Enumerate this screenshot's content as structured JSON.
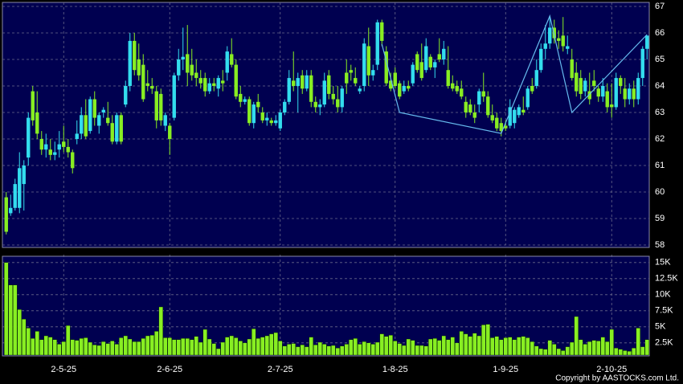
{
  "chart_data": [
    {
      "type": "candlestick",
      "up_color": "#33ddee",
      "down_color": "#88ee22",
      "categories": [
        null,
        null,
        null,
        null,
        null,
        null,
        null,
        null,
        null,
        null,
        null,
        null,
        null,
        "2-5-25",
        null,
        null,
        null,
        null,
        null,
        null,
        null,
        null,
        null,
        null,
        null,
        null,
        null,
        null,
        null,
        null,
        null,
        null,
        null,
        null,
        null,
        null,
        null,
        "2-6-25",
        null,
        null,
        null,
        null,
        null,
        null,
        null,
        null,
        null,
        null,
        null,
        null,
        null,
        null,
        null,
        null,
        null,
        null,
        null,
        null,
        null,
        null,
        null,
        null,
        "2-7-25",
        null,
        null,
        null,
        null,
        null,
        null,
        null,
        null,
        null,
        null,
        null,
        null,
        null,
        null,
        null,
        null,
        null,
        null,
        null,
        null,
        null,
        null,
        null,
        null,
        null,
        "1-8-25",
        null,
        null,
        null,
        null,
        null,
        null,
        null,
        null,
        null,
        null,
        null,
        null,
        null,
        null,
        null,
        null,
        null,
        null,
        null,
        null,
        null,
        null,
        null,
        null,
        "1-9-25",
        null,
        null,
        null,
        null,
        null,
        null,
        null,
        null,
        null,
        null,
        null,
        null,
        null,
        null,
        null,
        null,
        null,
        null,
        null,
        null,
        null,
        null,
        null,
        "2-10-25",
        null,
        null,
        null,
        null,
        null,
        null,
        null,
        null
      ],
      "open": [
        59.8,
        59.2,
        59.4,
        59.4,
        60.3,
        61.3,
        63.8,
        63.0,
        62.0,
        61.6,
        61.6,
        61.4,
        61.6,
        61.9,
        61.7,
        61.5,
        62.0,
        62.2,
        62.9,
        62.3,
        63.5,
        62.5,
        63.0,
        62.8,
        62.6,
        61.9,
        62.9,
        63.3,
        64.0,
        65.7,
        65.0,
        64.8,
        64.1,
        64.0,
        63.8,
        63.7,
        62.5,
        62.5,
        62.8,
        64.4,
        65.0,
        65.2,
        64.8,
        64.5,
        64.3,
        64.3,
        63.8,
        64.1,
        63.9,
        64.2,
        64.5,
        65.2,
        64.8,
        63.7,
        63.4,
        63.5,
        62.6,
        63.4,
        63.0,
        62.7,
        62.7,
        62.6,
        62.4,
        63.0,
        63.4,
        64.2,
        64.0,
        64.4,
        63.9,
        64.4,
        63.4,
        63.2,
        63.3,
        64.4,
        63.7,
        63.5,
        63.2,
        64.5,
        64.6,
        64.3,
        63.8,
        64.0,
        65.5,
        64.4,
        64.8,
        66.4,
        65.3,
        64.2,
        64.5,
        64.1,
        63.8,
        64.0,
        64.1,
        65.2,
        64.9,
        64.6,
        65.1,
        64.7,
        65.2,
        65.0,
        64.6,
        64.1,
        64.0,
        63.9,
        63.4,
        63.3,
        63.0,
        63.3,
        63.8,
        63.6,
        62.9,
        62.8,
        62.6,
        62.5,
        62.5,
        62.6,
        62.9,
        63.1,
        63.2,
        64.0,
        64.0,
        64.6,
        65.4,
        65.6,
        66.2,
        65.8,
        65.9,
        65.4,
        65.0,
        64.5,
        64.3,
        63.8,
        63.8,
        64.2,
        63.9,
        63.6,
        63.8,
        63.3,
        63.2,
        64.3,
        63.9,
        63.5,
        63.9,
        63.5,
        64.3,
        65.4
      ],
      "high": [
        60.0,
        59.9,
        60.5,
        61.5,
        61.2,
        63.0,
        64.0,
        63.8,
        62.3,
        62.2,
        62.0,
        61.9,
        62.3,
        62.5,
        62.0,
        61.6,
        62.7,
        63.2,
        63.5,
        63.6,
        63.8,
        63.0,
        63.2,
        63.4,
        62.9,
        63.0,
        63.0,
        64.2,
        66.0,
        66.0,
        65.6,
        65.2,
        64.6,
        64.3,
        64.0,
        63.9,
        63.0,
        62.6,
        64.5,
        65.4,
        66.2,
        66.3,
        65.4,
        65.0,
        64.6,
        64.5,
        64.3,
        64.3,
        64.4,
        64.6,
        65.5,
        65.8,
        65.0,
        64.0,
        63.6,
        63.6,
        63.4,
        63.7,
        63.2,
        63.0,
        62.8,
        62.9,
        63.1,
        63.5,
        64.6,
        65.3,
        64.5,
        64.6,
        64.6,
        64.6,
        63.6,
        63.5,
        64.5,
        64.6,
        64.0,
        64.0,
        64.0,
        65.0,
        64.8,
        64.7,
        64.0,
        65.8,
        66.2,
        64.8,
        66.5,
        66.5,
        65.5,
        64.5,
        64.7,
        64.2,
        64.2,
        64.2,
        64.9,
        65.3,
        65.6,
        65.8,
        65.2,
        65.0,
        65.8,
        65.7,
        65.5,
        64.4,
        64.2,
        64.2,
        63.6,
        63.5,
        63.3,
        63.9,
        64.5,
        63.8,
        63.3,
        63.0,
        62.8,
        62.7,
        63.5,
        63.2,
        63.3,
        63.6,
        64.0,
        64.3,
        65.0,
        65.6,
        66.3,
        66.6,
        66.5,
        66.1,
        66.6,
        65.9,
        65.4,
        64.9,
        64.6,
        64.3,
        64.5,
        64.6,
        64.0,
        64.3,
        64.1,
        64.1,
        64.5,
        64.4,
        64.3,
        64.1,
        64.2,
        64.5,
        65.5,
        65.9
      ],
      "low": [
        58.4,
        59.1,
        59.3,
        59.2,
        59.3,
        61.0,
        62.5,
        62.0,
        61.4,
        61.3,
        61.2,
        61.2,
        61.3,
        61.5,
        61.3,
        60.7,
        61.8,
        62.0,
        62.0,
        62.2,
        62.5,
        62.2,
        62.8,
        62.5,
        61.8,
        61.8,
        61.8,
        63.2,
        63.8,
        64.4,
        64.2,
        63.4,
        63.8,
        63.7,
        62.4,
        62.5,
        62.3,
        61.4,
        62.7,
        64.2,
        64.6,
        64.0,
        64.2,
        64.0,
        63.9,
        63.6,
        63.7,
        63.8,
        63.6,
        63.8,
        64.2,
        64.7,
        63.5,
        63.2,
        63.3,
        62.5,
        62.4,
        63.0,
        62.6,
        62.5,
        62.5,
        62.5,
        62.3,
        62.9,
        63.3,
        63.8,
        63.0,
        63.7,
        63.8,
        63.2,
        63.0,
        62.9,
        63.2,
        63.5,
        63.3,
        63.0,
        63.0,
        63.7,
        64.2,
        64.0,
        63.7,
        63.8,
        64.0,
        64.2,
        64.6,
        65.5,
        64.0,
        63.8,
        63.9,
        63.5,
        63.7,
        63.8,
        64.0,
        64.5,
        64.2,
        64.5,
        64.6,
        64.3,
        64.9,
        64.8,
        63.9,
        63.8,
        63.7,
        63.5,
        62.8,
        62.9,
        62.6,
        63.0,
        63.4,
        62.8,
        62.6,
        62.3,
        62.1,
        62.3,
        62.4,
        62.4,
        62.8,
        62.9,
        63.1,
        63.7,
        63.9,
        64.5,
        65.0,
        65.4,
        65.6,
        65.4,
        65.3,
        65.2,
        64.2,
        63.6,
        63.5,
        63.6,
        63.3,
        63.8,
        63.4,
        63.4,
        63.0,
        62.8,
        63.1,
        63.7,
        63.2,
        63.3,
        63.2,
        63.3,
        64.0,
        65.0
      ],
      "close": [
        58.5,
        59.4,
        60.3,
        60.9,
        61.0,
        62.8,
        62.7,
        62.2,
        61.6,
        61.8,
        61.4,
        61.5,
        61.8,
        61.7,
        61.5,
        60.9,
        62.2,
        62.9,
        62.1,
        63.5,
        62.8,
        62.9,
        63.1,
        62.6,
        61.9,
        62.9,
        61.9,
        64.0,
        65.7,
        64.6,
        64.4,
        63.5,
        64.0,
        63.9,
        62.7,
        62.7,
        62.9,
        62.0,
        64.4,
        65.0,
        65.1,
        64.5,
        64.4,
        64.3,
        64.1,
        63.8,
        64.1,
        64.0,
        64.3,
        64.1,
        65.3,
        64.8,
        63.6,
        63.4,
        63.5,
        62.6,
        63.3,
        63.2,
        62.7,
        62.8,
        62.6,
        62.7,
        63.0,
        63.4,
        64.3,
        64.0,
        64.3,
        63.9,
        64.4,
        63.4,
        63.2,
        63.3,
        64.2,
        63.7,
        63.5,
        63.2,
        63.9,
        64.1,
        64.5,
        64.1,
        63.9,
        65.6,
        64.4,
        64.6,
        66.4,
        65.7,
        64.1,
        63.9,
        64.0,
        63.6,
        64.0,
        63.9,
        64.8,
        64.6,
        64.3,
        65.5,
        64.7,
        64.9,
        65.0,
        65.4,
        64.0,
        63.9,
        63.8,
        63.6,
        63.0,
        63.0,
        62.8,
        63.8,
        63.6,
        62.9,
        62.7,
        62.4,
        62.3,
        62.4,
        63.2,
        63.1,
        63.2,
        63.0,
        63.9,
        63.8,
        64.6,
        65.4,
        65.6,
        66.2,
        65.8,
        65.7,
        65.5,
        65.5,
        64.3,
        63.8,
        63.7,
        64.2,
        63.5,
        64.0,
        63.6,
        64.0,
        63.2,
        63.2,
        64.3,
        64.0,
        63.5,
        63.9,
        63.5,
        64.3,
        65.4,
        65.9
      ],
      "zigzag": {
        "color": "#66bbee",
        "x": [
          85,
          89,
          112,
          123,
          128,
          145
        ],
        "values": [
          65.58,
          63.0,
          62.21,
          66.64,
          63.0,
          65.94
        ]
      },
      "ylim": [
        58,
        67
      ],
      "yticks": [
        58,
        59,
        60,
        61,
        62,
        63,
        64,
        65,
        66,
        67
      ],
      "grid": true
    },
    {
      "type": "bar",
      "color": "#88ee22",
      "values": [
        15000,
        11500,
        11500,
        7700,
        6200,
        4800,
        3200,
        4300,
        3000,
        3600,
        3400,
        3000,
        2300,
        2700,
        5200,
        3000,
        2900,
        3200,
        3300,
        2600,
        2200,
        2100,
        2700,
        2400,
        2800,
        2300,
        3300,
        3600,
        3100,
        2700,
        2700,
        3200,
        3600,
        3700,
        4300,
        8100,
        3300,
        3300,
        3000,
        3000,
        3200,
        3200,
        3000,
        3500,
        2600,
        4600,
        3100,
        2400,
        1600,
        2600,
        3400,
        3600,
        3300,
        2800,
        2500,
        3100,
        4700,
        3200,
        3400,
        3600,
        3900,
        4100,
        2800,
        2000,
        2300,
        2400,
        1900,
        2200,
        1900,
        3400,
        2200,
        2600,
        2300,
        2000,
        2100,
        1700,
        2000,
        2300,
        3000,
        3200,
        2300,
        2700,
        2500,
        2300,
        2600,
        3900,
        3500,
        3700,
        2800,
        2400,
        2100,
        3100,
        2900,
        2100,
        2100,
        2000,
        3100,
        3200,
        2900,
        3600,
        3000,
        3400,
        2500,
        4300,
        3900,
        3500,
        4000,
        3600,
        5300,
        5400,
        3300,
        3500,
        3000,
        3300,
        3400,
        3000,
        3400,
        3500,
        3300,
        2700,
        2000,
        1600,
        1500,
        2900,
        2300,
        1600,
        1300,
        1900,
        2600,
        6600,
        3000,
        2300,
        2700,
        2900,
        2800,
        3400,
        2700,
        4600,
        1700,
        1500,
        1300,
        1200,
        1700,
        4800,
        1900,
        3000
      ],
      "ylim": [
        600,
        15600
      ],
      "yticks": [
        {
          "value": 2500,
          "label": "2.5K"
        },
        {
          "value": 5000,
          "label": "5K"
        },
        {
          "value": 7500,
          "label": "7.5K"
        },
        {
          "value": 10000,
          "label": "10K"
        },
        {
          "value": 12500,
          "label": "12.5K"
        },
        {
          "value": 15000,
          "label": "15K"
        }
      ],
      "grid": true
    },
    {
      "type": "footer",
      "text": "Copyright by AASTOCKS.com Ltd."
    }
  ]
}
